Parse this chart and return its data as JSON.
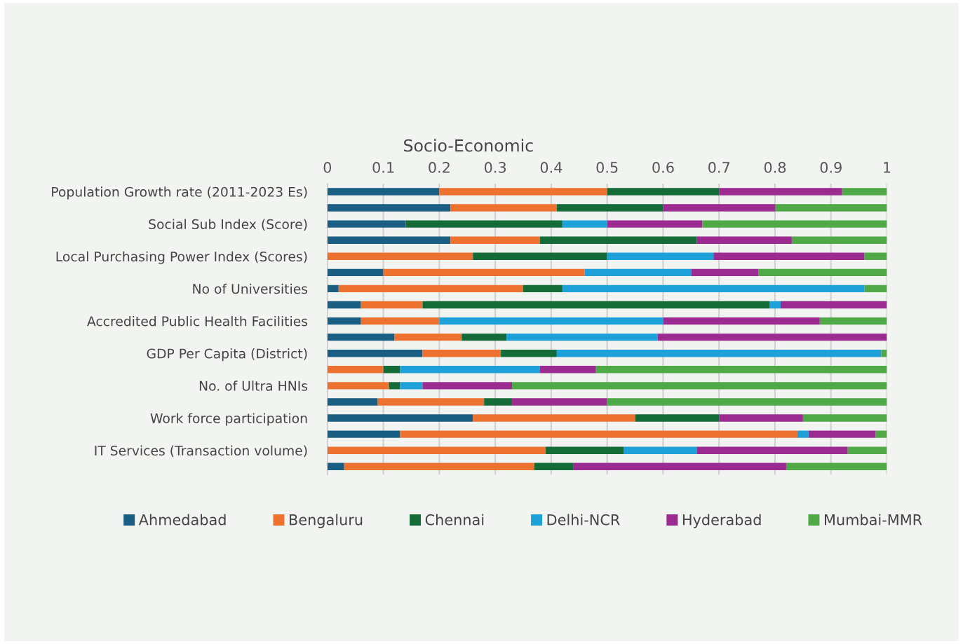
{
  "chart_data": {
    "type": "bar",
    "orientation": "horizontal",
    "stacked": true,
    "title": "Socio-Economic",
    "categories": [
      "Population Growth rate (2011-2023 Es)",
      null,
      "Social Sub Index (Score)",
      null,
      "Local Purchasing Power Index (Scores)",
      null,
      "No of Universities",
      null,
      "Accredited Public Health Facilities",
      null,
      "GDP Per Capita (District)",
      null,
      "No. of Ultra HNIs",
      null,
      "Work force participation",
      null,
      "IT Services (Transaction volume)",
      null
    ],
    "series": [
      {
        "name": "Ahmedabad",
        "color": "#1b5e83",
        "values": [
          0.2,
          0.22,
          0.14,
          0.22,
          0,
          0.1,
          0.02,
          0.06,
          0.06,
          0.12,
          0.17,
          0,
          0,
          0.09,
          0.26,
          0.13,
          0,
          0.03
        ]
      },
      {
        "name": "Bengaluru",
        "color": "#ed7230",
        "values": [
          0.3,
          0.19,
          0,
          0.16,
          0.26,
          0.36,
          0.33,
          0.11,
          0.14,
          0.12,
          0.14,
          0.1,
          0.11,
          0.19,
          0.29,
          0.71,
          0.39,
          0.34
        ]
      },
      {
        "name": "Chennai",
        "color": "#156b38",
        "values": [
          0.2,
          0.19,
          0.28,
          0.28,
          0.24,
          0,
          0.07,
          0.62,
          0,
          0.08,
          0.1,
          0.03,
          0.02,
          0.05,
          0.15,
          0,
          0.14,
          0.07
        ]
      },
      {
        "name": "Delhi-NCR",
        "color": "#1ea0d8",
        "values": [
          0,
          0,
          0.08,
          0,
          0.19,
          0.19,
          0.54,
          0.02,
          0.4,
          0.27,
          0.58,
          0.25,
          0.04,
          0,
          0,
          0.02,
          0.13,
          0
        ]
      },
      {
        "name": "Hyderabad",
        "color": "#9c2b91",
        "values": [
          0.22,
          0.2,
          0.17,
          0.17,
          0.27,
          0.12,
          0,
          0.19,
          0.28,
          0.41,
          0,
          0.1,
          0.16,
          0.17,
          0.15,
          0.12,
          0.27,
          0.38
        ]
      },
      {
        "name": "Mumbai-MMR",
        "color": "#4ea946",
        "values": [
          0.08,
          0.2,
          0.33,
          0.17,
          0.04,
          0.23,
          0.04,
          0,
          0.12,
          0,
          0.01,
          0.52,
          0.67,
          0.5,
          0.15,
          0.02,
          0.07,
          0.18
        ]
      }
    ],
    "xlim": [
      0,
      1
    ],
    "xticks": [
      0,
      0.1,
      0.2,
      0.3,
      0.4,
      0.5,
      0.6,
      0.7,
      0.8,
      0.9,
      1
    ],
    "grid": "x",
    "legend": "bottom"
  }
}
